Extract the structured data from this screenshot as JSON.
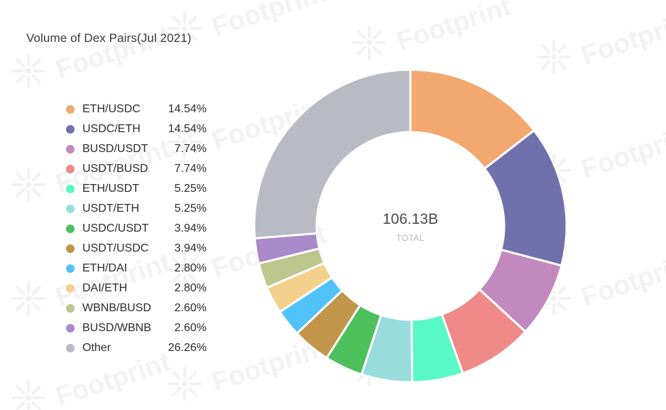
{
  "chart_data": {
    "type": "pie",
    "title": "Volume of Dex Pairs(Jul 2021)",
    "center_value": "106.13B",
    "center_label": "TOTAL",
    "legend_position": "left",
    "slices": [
      {
        "label": "ETH/USDC",
        "value": 14.54,
        "display": "14.54%",
        "color": "#f2a86f"
      },
      {
        "label": "USDC/ETH",
        "value": 14.54,
        "display": "14.54%",
        "color": "#7071ac"
      },
      {
        "label": "BUSD/USDT",
        "value": 7.74,
        "display": "7.74%",
        "color": "#c388bd"
      },
      {
        "label": "USDT/BUSD",
        "value": 7.74,
        "display": "7.74%",
        "color": "#ef8a88"
      },
      {
        "label": "ETH/USDT",
        "value": 5.25,
        "display": "5.25%",
        "color": "#59f9c5"
      },
      {
        "label": "USDT/ETH",
        "value": 5.25,
        "display": "5.25%",
        "color": "#98dcdb"
      },
      {
        "label": "USDC/USDT",
        "value": 3.94,
        "display": "3.94%",
        "color": "#4dc05b"
      },
      {
        "label": "USDT/USDC",
        "value": 3.94,
        "display": "3.94%",
        "color": "#c1964b"
      },
      {
        "label": "ETH/DAI",
        "value": 2.8,
        "display": "2.80%",
        "color": "#52c3fa"
      },
      {
        "label": "DAI/ETH",
        "value": 2.8,
        "display": "2.80%",
        "color": "#f3d08c"
      },
      {
        "label": "WBNB/BUSD",
        "value": 2.6,
        "display": "2.60%",
        "color": "#bdc68c"
      },
      {
        "label": "BUSD/WBNB",
        "value": 2.6,
        "display": "2.60%",
        "color": "#a889c9"
      },
      {
        "label": "Other",
        "value": 26.26,
        "display": "26.26%",
        "color": "#b8bbc4"
      }
    ]
  },
  "watermark": {
    "text": "Footprint",
    "color": "#f3f3f3"
  }
}
